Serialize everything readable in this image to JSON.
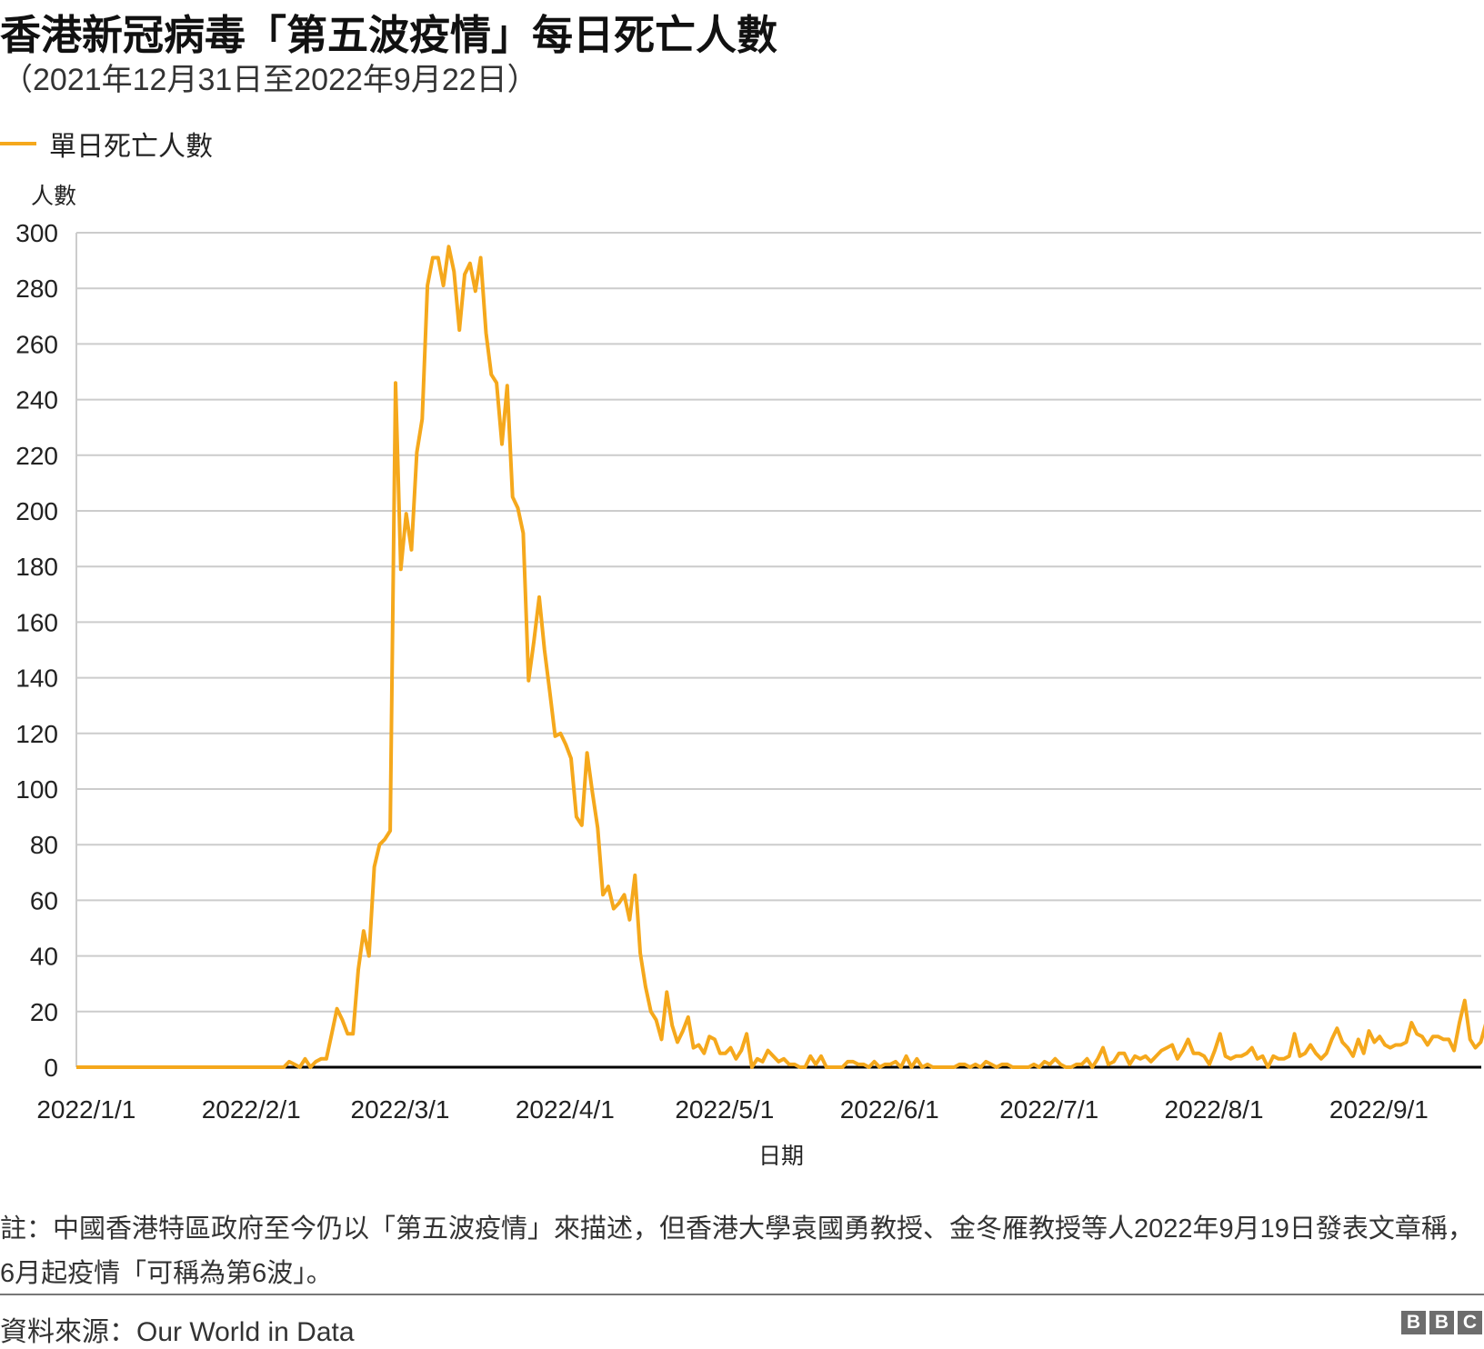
{
  "title": "香港新冠病毒「第五波疫情」每日死亡人數",
  "subtitle": "（2021年12月31日至2022年9月22日）",
  "note": "註：中國香港特區政府至今仍以「第五波疫情」來描述，但香港大學袁國勇教授、金冬雁教授等人2022年9月19日發表文章稱，6月起疫情「可稱為第6波」。",
  "source": "資料來源：Our World in Data",
  "logo": [
    "B",
    "B",
    "C"
  ],
  "colors": {
    "line": "#f5a81c",
    "grid": "#cccccc",
    "axis": "#000000"
  },
  "chart_data": {
    "type": "line",
    "title": "香港新冠病毒「第五波疫情」每日死亡人數",
    "xlabel": "日期",
    "ylabel": "人數",
    "ylim": [
      0,
      300
    ],
    "yticks": [
      0,
      20,
      40,
      60,
      80,
      100,
      120,
      140,
      160,
      180,
      200,
      220,
      240,
      260,
      280,
      300
    ],
    "start_date": "2021-12-31",
    "end_date": "2022-09-22",
    "xticks": [
      {
        "label": "2022/1/1",
        "day": 1
      },
      {
        "label": "2022/2/1",
        "day": 32
      },
      {
        "label": "2022/3/1",
        "day": 60
      },
      {
        "label": "2022/4/1",
        "day": 91
      },
      {
        "label": "2022/5/1",
        "day": 121
      },
      {
        "label": "2022/6/1",
        "day": 152
      },
      {
        "label": "2022/7/1",
        "day": 182
      },
      {
        "label": "2022/8/1",
        "day": 213
      },
      {
        "label": "2022/9/1",
        "day": 244
      }
    ],
    "grid": true,
    "legend": "top-left",
    "series": [
      {
        "name": "單日死亡人數",
        "values": [
          0,
          0,
          0,
          0,
          0,
          0,
          0,
          0,
          0,
          0,
          0,
          0,
          0,
          0,
          0,
          0,
          0,
          0,
          0,
          0,
          0,
          0,
          0,
          0,
          0,
          0,
          0,
          0,
          0,
          0,
          0,
          0,
          0,
          0,
          0,
          0,
          0,
          0,
          0,
          0,
          2,
          1,
          0,
          3,
          0,
          2,
          3,
          3,
          12,
          21,
          17,
          12,
          12,
          35,
          49,
          40,
          72,
          80,
          82,
          85,
          246,
          179,
          199,
          186,
          221,
          233,
          281,
          291,
          291,
          281,
          295,
          286,
          265,
          285,
          289,
          279,
          291,
          264,
          249,
          246,
          224,
          245,
          205,
          201,
          192,
          139,
          153,
          169,
          150,
          135,
          119,
          120,
          116,
          111,
          90,
          87,
          113,
          99,
          86,
          62,
          65,
          57,
          59,
          62,
          53,
          69,
          41,
          29,
          20,
          17,
          10,
          27,
          15,
          9,
          13,
          18,
          7,
          8,
          5,
          11,
          10,
          5,
          5,
          7,
          3,
          6,
          12,
          0,
          3,
          2,
          6,
          4,
          2,
          3,
          1,
          1,
          0,
          0,
          4,
          1,
          4,
          0,
          0,
          0,
          0,
          2,
          2,
          1,
          1,
          0,
          2,
          0,
          1,
          1,
          2,
          0,
          4,
          0,
          3,
          0,
          1,
          0,
          0,
          0,
          0,
          0,
          1,
          1,
          0,
          1,
          0,
          2,
          1,
          0,
          1,
          1,
          0,
          0,
          0,
          0,
          1,
          0,
          2,
          1,
          3,
          1,
          0,
          0,
          1,
          1,
          3,
          0,
          3,
          7,
          1,
          2,
          5,
          5,
          1,
          4,
          3,
          4,
          2,
          4,
          6,
          7,
          8,
          3,
          6,
          10,
          5,
          5,
          4,
          1,
          6,
          12,
          4,
          3,
          4,
          4,
          5,
          7,
          3,
          4,
          0,
          4,
          3,
          3,
          4,
          12,
          4,
          5,
          8,
          5,
          3,
          5,
          10,
          14,
          9,
          7,
          4,
          10,
          5,
          13,
          9,
          11,
          8,
          7,
          8,
          8,
          9,
          16,
          12,
          11,
          8,
          11,
          11,
          10,
          10,
          6,
          16,
          24,
          10,
          7,
          9,
          16
        ]
      }
    ]
  }
}
